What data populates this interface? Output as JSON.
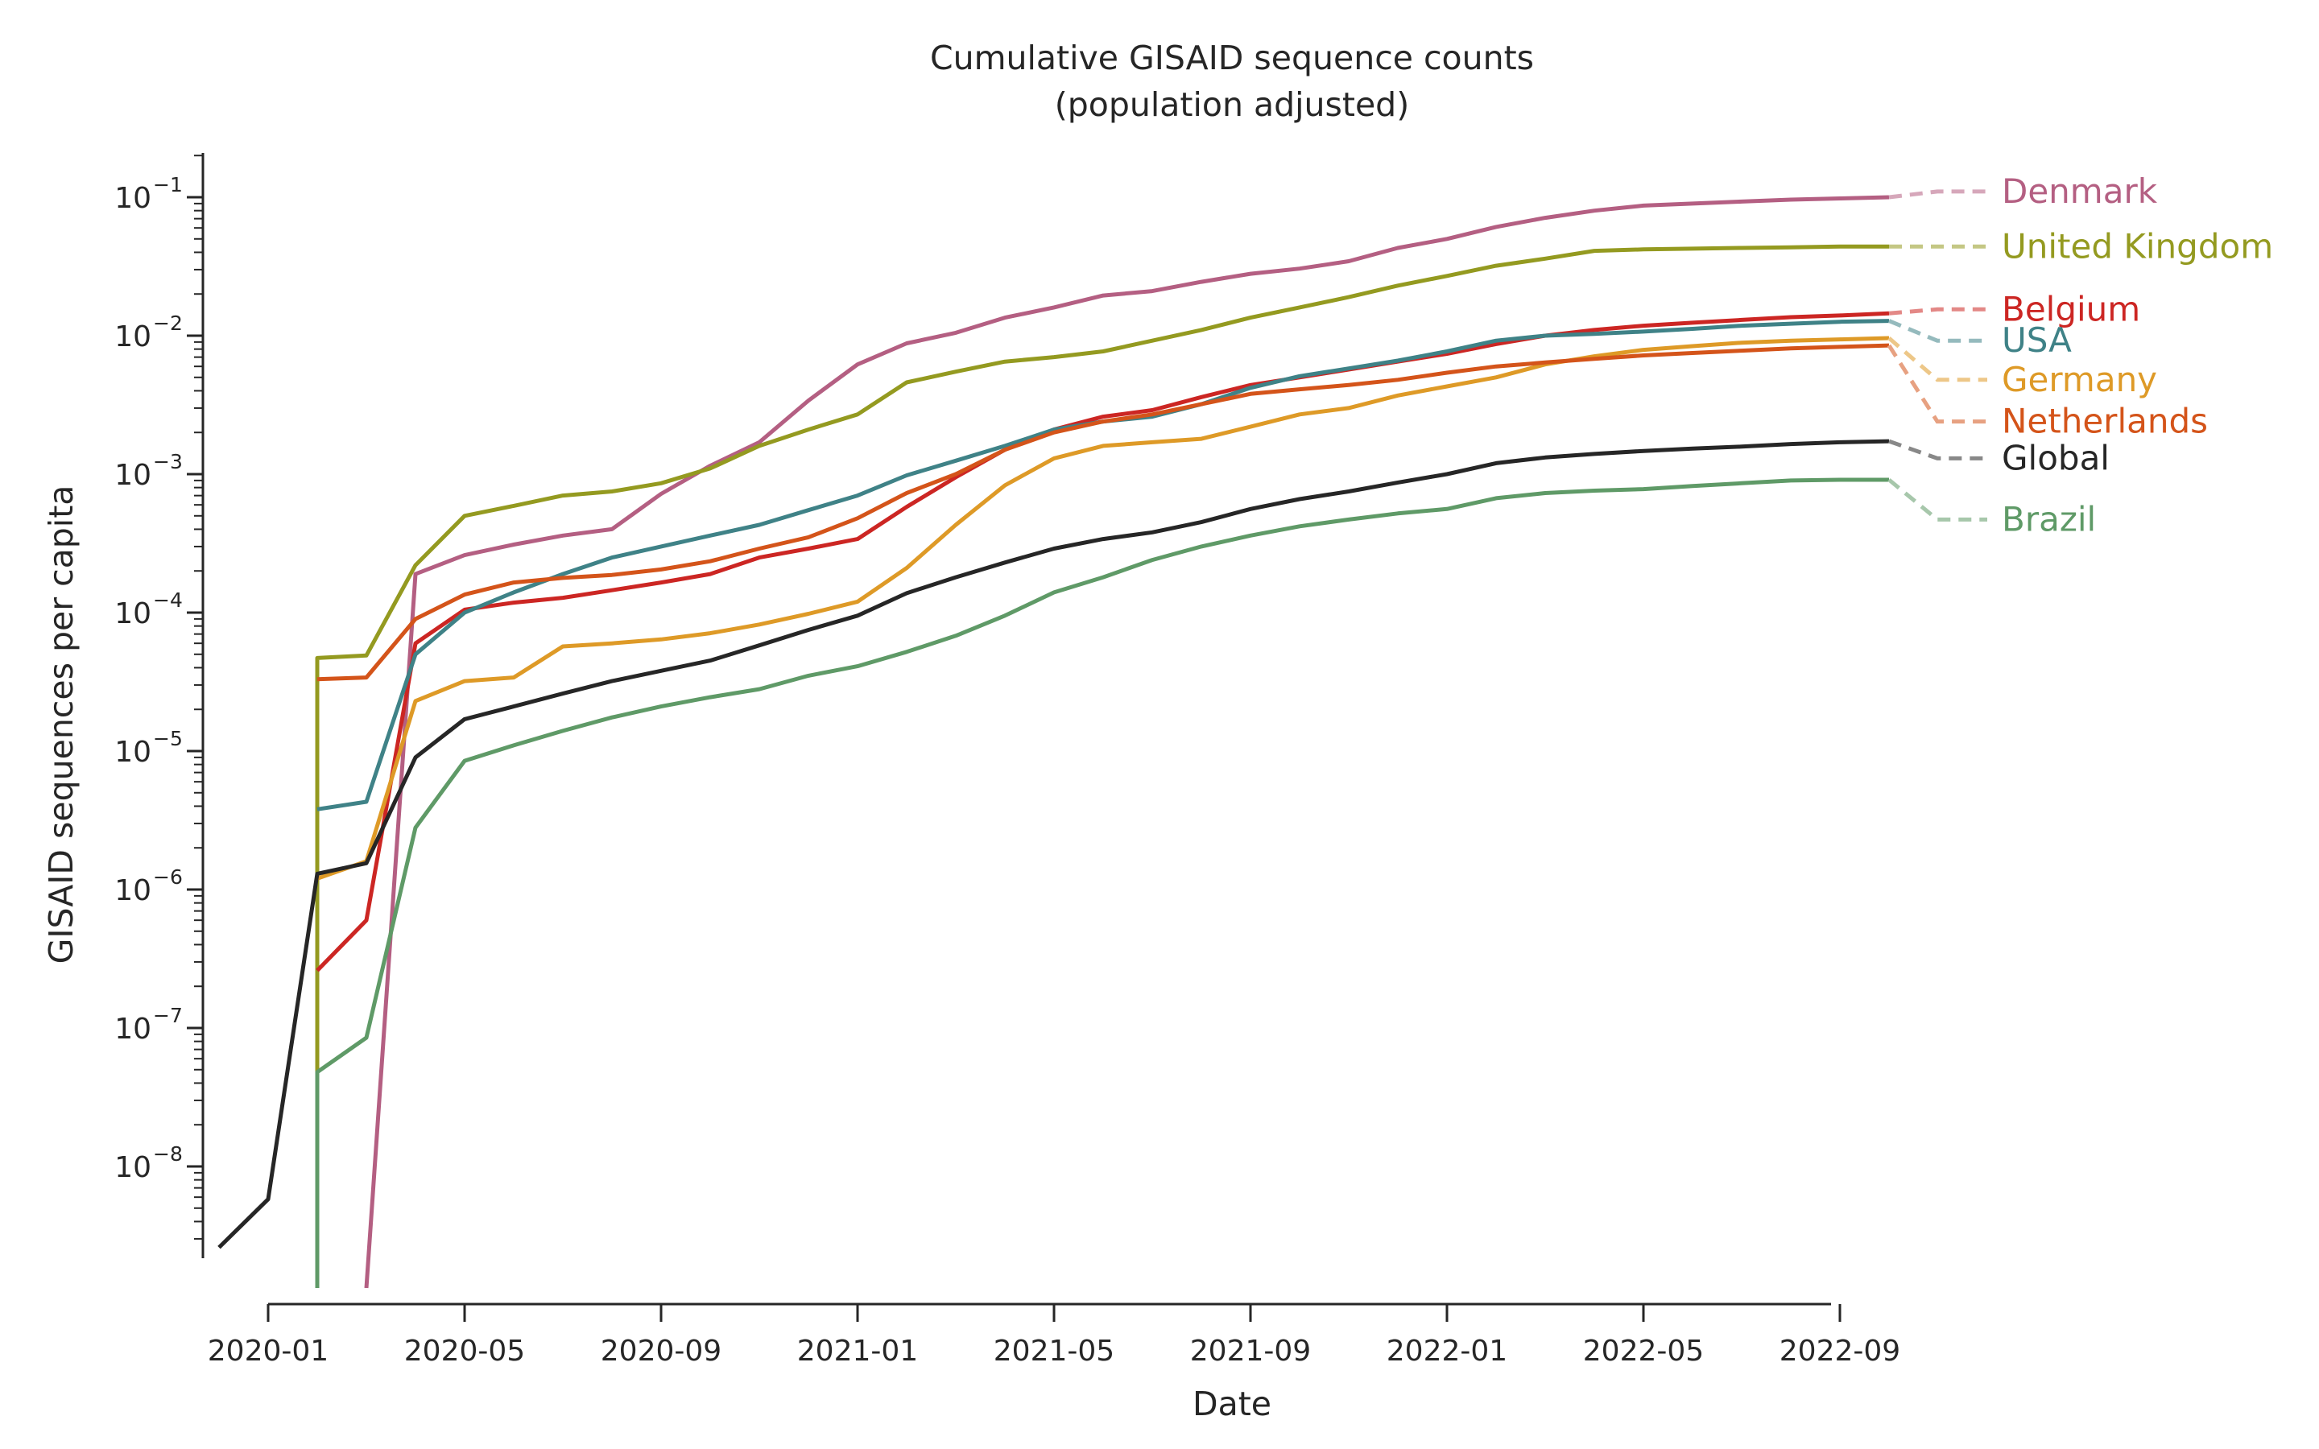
{
  "chart_data": {
    "type": "line",
    "title": "Cumulative GISAID sequence counts",
    "subtitle": "(population adjusted)",
    "xlabel": "Date",
    "ylabel": "GISAID sequences per capita",
    "yscale": "log",
    "ylim": [
      1e-09,
      0.2
    ],
    "x_ticks": [
      "2020-01",
      "2020-05",
      "2020-09",
      "2021-01",
      "2021-05",
      "2021-09",
      "2022-01",
      "2022-05",
      "2022-09"
    ],
    "y_ticks": [
      {
        "base": "10",
        "exp": "−8",
        "value": 1e-08
      },
      {
        "base": "10",
        "exp": "−7",
        "value": 1e-07
      },
      {
        "base": "10",
        "exp": "−6",
        "value": 1e-06
      },
      {
        "base": "10",
        "exp": "−5",
        "value": 1e-05
      },
      {
        "base": "10",
        "exp": "−4",
        "value": 0.0001
      },
      {
        "base": "10",
        "exp": "−3",
        "value": 0.001
      },
      {
        "base": "10",
        "exp": "−2",
        "value": 0.01
      },
      {
        "base": "10",
        "exp": "−1",
        "value": 0.1
      }
    ],
    "grid": false,
    "legend": "line-end labels",
    "series": [
      {
        "name": "Denmark",
        "color": "#b45f82",
        "x": [
          "2020-03",
          "2020-04",
          "2020-05",
          "2020-06",
          "2020-07",
          "2020-08",
          "2020-09",
          "2020-10",
          "2020-11",
          "2020-12",
          "2021-01",
          "2021-02",
          "2021-03",
          "2021-04",
          "2021-05",
          "2021-06",
          "2021-07",
          "2021-08",
          "2021-09",
          "2021-10",
          "2021-11",
          "2021-12",
          "2022-01",
          "2022-02",
          "2022-03",
          "2022-04",
          "2022-05",
          "2022-06",
          "2022-07",
          "2022-08",
          "2022-09",
          "2022-10"
        ],
        "y": [
          1e-09,
          0.00019,
          0.00026,
          0.00031,
          0.00036,
          0.0004,
          0.00072,
          0.00115,
          0.0017,
          0.0034,
          0.0062,
          0.0088,
          0.0105,
          0.0135,
          0.016,
          0.0195,
          0.021,
          0.0245,
          0.028,
          0.0305,
          0.0345,
          0.043,
          0.05,
          0.061,
          0.071,
          0.08,
          0.087,
          0.09,
          0.093,
          0.096,
          0.098,
          0.1
        ],
        "label_y": 0.11
      },
      {
        "name": "United Kingdom",
        "color": "#949a20",
        "x": [
          "2020-02",
          "2020-02",
          "2020-03",
          "2020-04",
          "2020-05",
          "2020-06",
          "2020-07",
          "2020-08",
          "2020-09",
          "2020-10",
          "2020-11",
          "2020-12",
          "2021-01",
          "2021-02",
          "2021-03",
          "2021-04",
          "2021-05",
          "2021-06",
          "2021-07",
          "2021-08",
          "2021-09",
          "2021-10",
          "2021-11",
          "2021-12",
          "2022-01",
          "2022-02",
          "2022-03",
          "2022-04",
          "2022-05",
          "2022-06",
          "2022-07",
          "2022-08",
          "2022-09",
          "2022-10"
        ],
        "y": [
          1e-09,
          4.7e-05,
          4.9e-05,
          0.00022,
          0.0005,
          0.00059,
          0.0007,
          0.00075,
          0.00086,
          0.0011,
          0.0016,
          0.0021,
          0.0027,
          0.0046,
          0.0055,
          0.0065,
          0.007,
          0.0077,
          0.0092,
          0.011,
          0.0135,
          0.016,
          0.019,
          0.023,
          0.027,
          0.032,
          0.036,
          0.041,
          0.042,
          0.0425,
          0.043,
          0.0435,
          0.044,
          0.044
        ],
        "label_y": 0.044
      },
      {
        "name": "Belgium",
        "color": "#cc2623",
        "x": [
          "2020-02",
          "2020-03",
          "2020-04",
          "2020-05",
          "2020-06",
          "2020-07",
          "2020-08",
          "2020-09",
          "2020-10",
          "2020-11",
          "2020-12",
          "2021-01",
          "2021-02",
          "2021-03",
          "2021-04",
          "2021-05",
          "2021-06",
          "2021-07",
          "2021-08",
          "2021-09",
          "2021-10",
          "2021-11",
          "2021-12",
          "2022-01",
          "2022-02",
          "2022-03",
          "2022-04",
          "2022-05",
          "2022-06",
          "2022-07",
          "2022-08",
          "2022-09",
          "2022-10"
        ],
        "y": [
          2.6e-07,
          6e-07,
          6e-05,
          0.000105,
          0.000118,
          0.000128,
          0.000145,
          0.000165,
          0.00019,
          0.00025,
          0.00029,
          0.00034,
          0.00058,
          0.00095,
          0.0015,
          0.0021,
          0.0026,
          0.0029,
          0.0036,
          0.0044,
          0.005,
          0.0057,
          0.0065,
          0.0074,
          0.0087,
          0.01,
          0.011,
          0.0118,
          0.0124,
          0.013,
          0.0136,
          0.014,
          0.0145
        ],
        "label_y": 0.0155
      },
      {
        "name": "USA",
        "color": "#3f8287",
        "x": [
          "2020-02",
          "2020-03",
          "2020-04",
          "2020-05",
          "2020-06",
          "2020-07",
          "2020-08",
          "2020-09",
          "2020-10",
          "2020-11",
          "2020-12",
          "2021-01",
          "2021-02",
          "2021-03",
          "2021-04",
          "2021-05",
          "2021-06",
          "2021-07",
          "2021-08",
          "2021-09",
          "2021-10",
          "2021-11",
          "2021-12",
          "2022-01",
          "2022-02",
          "2022-03",
          "2022-04",
          "2022-05",
          "2022-06",
          "2022-07",
          "2022-08",
          "2022-09",
          "2022-10"
        ],
        "y": [
          3.8e-06,
          4.3e-06,
          5e-05,
          0.0001,
          0.00014,
          0.00019,
          0.00025,
          0.0003,
          0.00036,
          0.00043,
          0.00055,
          0.0007,
          0.00098,
          0.00125,
          0.0016,
          0.0021,
          0.0024,
          0.0026,
          0.0032,
          0.0042,
          0.0051,
          0.0058,
          0.0066,
          0.0077,
          0.0092,
          0.01,
          0.0103,
          0.0107,
          0.0112,
          0.0118,
          0.0122,
          0.0126,
          0.0128
        ],
        "label_y": 0.0092
      },
      {
        "name": "Germany",
        "color": "#de9a27",
        "x": [
          "2020-02",
          "2020-03",
          "2020-04",
          "2020-05",
          "2020-06",
          "2020-07",
          "2020-08",
          "2020-09",
          "2020-10",
          "2020-11",
          "2020-12",
          "2021-01",
          "2021-02",
          "2021-03",
          "2021-04",
          "2021-05",
          "2021-06",
          "2021-07",
          "2021-08",
          "2021-09",
          "2021-10",
          "2021-11",
          "2021-12",
          "2022-01",
          "2022-02",
          "2022-03",
          "2022-04",
          "2022-05",
          "2022-06",
          "2022-07",
          "2022-08",
          "2022-09",
          "2022-10"
        ],
        "y": [
          1.2e-06,
          1.6e-06,
          2.3e-05,
          3.2e-05,
          3.4e-05,
          5.7e-05,
          6e-05,
          6.4e-05,
          7.1e-05,
          8.2e-05,
          9.8e-05,
          0.00012,
          0.00021,
          0.00043,
          0.00083,
          0.0013,
          0.0016,
          0.0017,
          0.0018,
          0.0022,
          0.0027,
          0.003,
          0.0037,
          0.0043,
          0.005,
          0.0062,
          0.0071,
          0.0079,
          0.0084,
          0.0089,
          0.0092,
          0.0094,
          0.0096
        ],
        "label_y": 0.0048
      },
      {
        "name": "Netherlands",
        "color": "#d4541a",
        "x": [
          "2020-02",
          "2020-03",
          "2020-04",
          "2020-05",
          "2020-06",
          "2020-07",
          "2020-08",
          "2020-09",
          "2020-10",
          "2020-11",
          "2020-12",
          "2021-01",
          "2021-02",
          "2021-03",
          "2021-04",
          "2021-05",
          "2021-06",
          "2021-07",
          "2021-08",
          "2021-09",
          "2021-10",
          "2021-11",
          "2021-12",
          "2022-01",
          "2022-02",
          "2022-03",
          "2022-04",
          "2022-05",
          "2022-06",
          "2022-07",
          "2022-08",
          "2022-09",
          "2022-10"
        ],
        "y": [
          3.3e-05,
          3.4e-05,
          9e-05,
          0.000135,
          0.000165,
          0.000178,
          0.000187,
          0.000205,
          0.000235,
          0.00029,
          0.00035,
          0.00048,
          0.00073,
          0.001,
          0.0015,
          0.002,
          0.0024,
          0.0027,
          0.0032,
          0.0038,
          0.0041,
          0.0044,
          0.0048,
          0.0054,
          0.006,
          0.0064,
          0.0068,
          0.0072,
          0.0075,
          0.0078,
          0.0081,
          0.0083,
          0.0085
        ],
        "label_y": 0.0024
      },
      {
        "name": "Global",
        "color": "#262626",
        "x": [
          "2019-12",
          "2020-01",
          "2020-02",
          "2020-03",
          "2020-04",
          "2020-05",
          "2020-06",
          "2020-07",
          "2020-08",
          "2020-09",
          "2020-10",
          "2020-11",
          "2020-12",
          "2021-01",
          "2021-02",
          "2021-03",
          "2021-04",
          "2021-05",
          "2021-06",
          "2021-07",
          "2021-08",
          "2021-09",
          "2021-10",
          "2021-11",
          "2021-12",
          "2022-01",
          "2022-02",
          "2022-03",
          "2022-04",
          "2022-05",
          "2022-06",
          "2022-07",
          "2022-08",
          "2022-09",
          "2022-10"
        ],
        "y": [
          2.6e-09,
          5.8e-09,
          1.3e-06,
          1.55e-06,
          9e-06,
          1.7e-05,
          2.1e-05,
          2.6e-05,
          3.2e-05,
          3.8e-05,
          4.5e-05,
          5.8e-05,
          7.5e-05,
          9.5e-05,
          0.000138,
          0.00018,
          0.00023,
          0.00029,
          0.00034,
          0.00038,
          0.00045,
          0.00056,
          0.00066,
          0.00075,
          0.00087,
          0.001,
          0.0012,
          0.00132,
          0.0014,
          0.00147,
          0.00153,
          0.00158,
          0.00165,
          0.0017,
          0.00173
        ],
        "label_y": 0.0013
      },
      {
        "name": "Brazil",
        "color": "#5f9a67",
        "x": [
          "2020-02",
          "2020-02",
          "2020-03",
          "2020-04",
          "2020-05",
          "2020-06",
          "2020-07",
          "2020-08",
          "2020-09",
          "2020-10",
          "2020-11",
          "2020-12",
          "2021-01",
          "2021-02",
          "2021-03",
          "2021-04",
          "2021-05",
          "2021-06",
          "2021-07",
          "2021-08",
          "2021-09",
          "2021-10",
          "2021-11",
          "2021-12",
          "2022-01",
          "2022-02",
          "2022-03",
          "2022-04",
          "2022-05",
          "2022-06",
          "2022-07",
          "2022-08",
          "2022-09",
          "2022-10"
        ],
        "y": [
          1e-09,
          4.8e-08,
          8.5e-08,
          2.8e-06,
          8.5e-06,
          1.1e-05,
          1.4e-05,
          1.75e-05,
          2.1e-05,
          2.45e-05,
          2.8e-05,
          3.5e-05,
          4.1e-05,
          5.2e-05,
          6.8e-05,
          9.5e-05,
          0.00014,
          0.00018,
          0.00024,
          0.0003,
          0.00036,
          0.00042,
          0.00047,
          0.00052,
          0.00056,
          0.00067,
          0.00073,
          0.00076,
          0.00078,
          0.00082,
          0.00086,
          0.0009,
          0.00091,
          0.00091
        ],
        "label_y": 0.00047
      }
    ]
  }
}
